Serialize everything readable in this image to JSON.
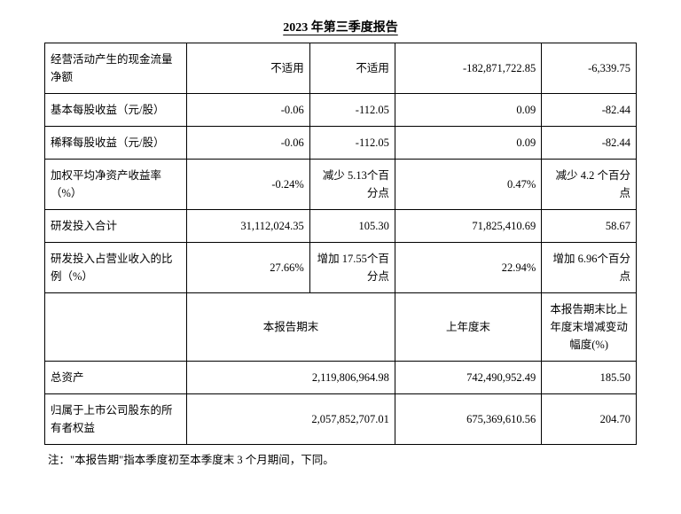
{
  "title": "2023 年第三季度报告",
  "rows": [
    {
      "label": "经营活动产生的现金流量净额",
      "c2": "不适用",
      "c3": "不适用",
      "c4": "-182,871,722.85",
      "c5": "-6,339.75"
    },
    {
      "label": "基本每股收益（元/股）",
      "c2": "-0.06",
      "c3": "-112.05",
      "c4": "0.09",
      "c5": "-82.44"
    },
    {
      "label": "稀释每股收益（元/股）",
      "c2": "-0.06",
      "c3": "-112.05",
      "c4": "0.09",
      "c5": "-82.44"
    },
    {
      "label": "加权平均净资产收益率（%）",
      "c2": "-0.24%",
      "c3": "减少 5.13个百分点",
      "c4": "0.47%",
      "c5": "减少 4.2 个百分点"
    },
    {
      "label": "研发投入合计",
      "c2": "31,112,024.35",
      "c3": "105.30",
      "c4": "71,825,410.69",
      "c5": "58.67"
    },
    {
      "label": "研发投入占营业收入的比例（%）",
      "c2": "27.66%",
      "c3": "增加 17.55个百分点",
      "c4": "22.94%",
      "c5": "增加 6.96个百分点"
    }
  ],
  "section_header": {
    "c2c3": "本报告期末",
    "c4": "上年度末",
    "c5": "本报告期末比上年度末增减变动幅度(%)"
  },
  "bottom_rows": [
    {
      "label": "总资产",
      "c2c3": "2,119,806,964.98",
      "c4": "742,490,952.49",
      "c5": "185.50"
    },
    {
      "label": "归属于上市公司股东的所有者权益",
      "c2c3": "2,057,852,707.01",
      "c4": "675,369,610.56",
      "c5": "204.70"
    }
  ],
  "footnote": "注：\"本报告期\"指本季度初至本季度末 3 个月期间，下同。"
}
